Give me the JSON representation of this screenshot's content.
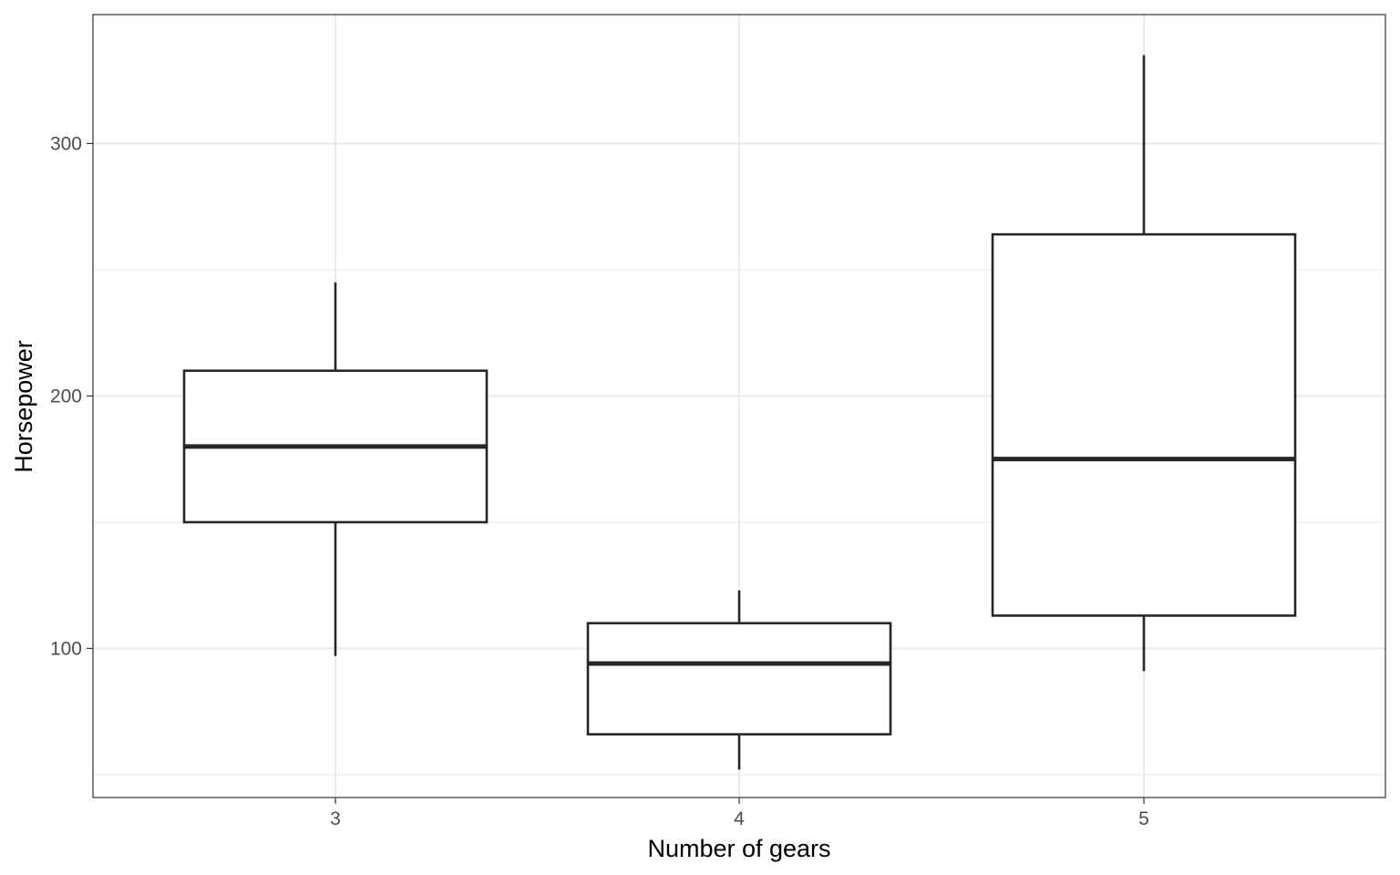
{
  "chart_data": {
    "type": "boxplot",
    "title": "",
    "xlabel": "Number of gears",
    "ylabel": "Horsepower",
    "categories": [
      "3",
      "4",
      "5"
    ],
    "x_tick_labels": [
      "3",
      "4",
      "5"
    ],
    "ylim": [
      40.95,
      351.05
    ],
    "y_ticks": [
      100,
      200,
      300
    ],
    "y_tick_labels": [
      "100",
      "200",
      "300"
    ],
    "y_minor_gridlines": [
      50,
      150,
      250
    ],
    "grid": true,
    "legend": "none",
    "boxes": [
      {
        "category": "3",
        "whisker_low": 97,
        "q1": 150,
        "median": 180,
        "q3": 210,
        "whisker_high": 245
      },
      {
        "category": "4",
        "whisker_low": 52,
        "q1": 66,
        "median": 94,
        "q3": 110,
        "whisker_high": 123
      },
      {
        "category": "5",
        "whisker_low": 91,
        "q1": 113,
        "median": 175,
        "q3": 264,
        "whisker_high": 335
      }
    ],
    "colors": {
      "box_stroke": "#262626",
      "box_fill": "#ffffff",
      "grid_major": "#ebebeb",
      "grid_minor": "#ebebeb",
      "panel_border": "#333333",
      "tick_label": "#4d4d4d",
      "axis_title": "#000000"
    }
  }
}
